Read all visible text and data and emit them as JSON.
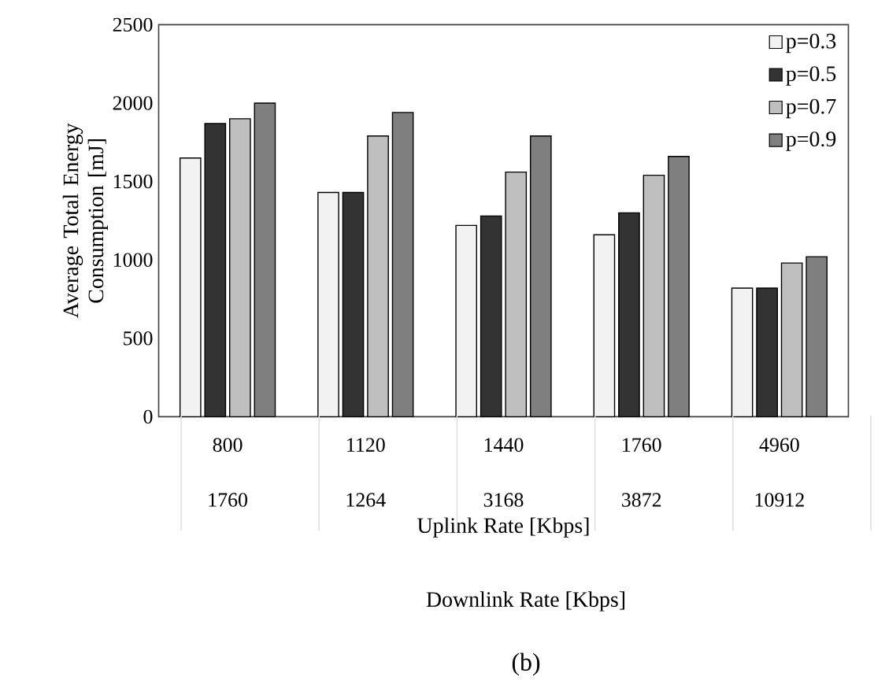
{
  "chart_data": {
    "type": "bar",
    "xlabel": "Uplink Rate [Kbps]",
    "ylabel": "Average Total Energy Consumption [mJ]",
    "categories": [
      "800",
      "1120",
      "1440",
      "1760",
      "4960"
    ],
    "series": [
      {
        "name": "p=0.3",
        "color": "#f2f2f2",
        "values": [
          1650,
          1430,
          1220,
          1160,
          820
        ]
      },
      {
        "name": "p=0.5",
        "color": "#333333",
        "values": [
          1870,
          1430,
          1280,
          1300,
          820
        ]
      },
      {
        "name": "p=0.7",
        "color": "#bfbfbf",
        "values": [
          1900,
          1790,
          1560,
          1540,
          980
        ]
      },
      {
        "name": "p=0.9",
        "color": "#7f7f7f",
        "values": [
          2000,
          1940,
          1790,
          1660,
          1020
        ]
      }
    ],
    "ylim": [
      0,
      2500
    ],
    "yticks": [
      0,
      500,
      1000,
      1500,
      2000,
      2500
    ],
    "legend": "top right",
    "annotations": [
      "1760",
      "1264",
      "3168",
      "3872",
      "10912",
      "Downlink Rate [Kbps]",
      "(b)"
    ]
  }
}
